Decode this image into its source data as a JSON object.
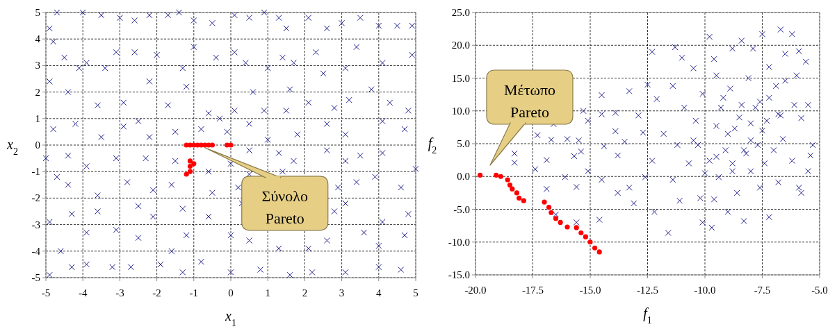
{
  "chart_data": [
    {
      "type": "scatter",
      "xlabel": "x$_{1}$",
      "ylabel": "x$_{2}$",
      "xlim": [
        -5,
        5
      ],
      "ylim": [
        -5,
        5
      ],
      "xticks": [
        -5,
        -4,
        -3,
        -2,
        -1,
        0,
        1,
        2,
        3,
        4,
        5
      ],
      "yticks": [
        -5,
        -4,
        -3,
        -2,
        -1,
        0,
        1,
        2,
        3,
        4,
        5
      ],
      "grid": true,
      "annotations": [
        {
          "text": "Σύνολο\nPareto",
          "x": -0.7,
          "y": -0.1
        }
      ],
      "series": [
        {
          "marker": "cross",
          "color": "#1c1c8c",
          "x": [
            -4.9,
            -4.7,
            -4.0,
            -3.5,
            -3.0,
            -2.6,
            -2.2,
            -1.7,
            -1.4,
            -1.0,
            -0.5,
            0.1,
            0.5,
            0.9,
            1.3,
            1.5,
            2.1,
            2.6,
            3.0,
            3.5,
            4.0,
            4.5,
            4.9,
            -4.8,
            -4.5,
            -4.1,
            -3.9,
            -3.4,
            -3.1,
            -2.6,
            -2.0,
            -1.3,
            -1.0,
            -0.4,
            0.1,
            0.4,
            1.0,
            1.4,
            1.7,
            2.3,
            2.5,
            3.1,
            3.4,
            4.1,
            4.9,
            -4.9,
            -4.4,
            -3.6,
            -2.9,
            -2.5,
            -2.2,
            -1.7,
            -1.2,
            -0.6,
            -0.3,
            0.1,
            0.6,
            0.9,
            1.5,
            1.6,
            2.1,
            2.8,
            3.2,
            3.8,
            4.3,
            4.8,
            -4.8,
            -4.2,
            -3.5,
            -2.9,
            -2.2,
            -1.5,
            -0.8,
            -0.1,
            0.5,
            1.0,
            1.8,
            2.6,
            3.1,
            4.1,
            4.7,
            -5.0,
            -4.4,
            -3.9,
            -3.1,
            -2.3,
            -1.5,
            -0.6,
            0.0,
            0.5,
            1.3,
            1.7,
            2.6,
            3.1,
            3.5,
            4.1,
            5.0,
            -4.7,
            -4.4,
            -3.6,
            -2.8,
            -2.1,
            -1.6,
            -0.5,
            0.2,
            0.5,
            1.4,
            2.9,
            3.4,
            3.9,
            4.6,
            -4.9,
            -4.3,
            -3.6,
            -2.5,
            -2.1,
            -1.3,
            -0.6,
            0.3,
            2.8,
            3.1,
            4.1,
            4.8,
            -4.6,
            -3.9,
            -3.1,
            -2.5,
            -1.6,
            -1.2,
            0.0,
            0.5,
            1.3,
            2.1,
            2.6,
            3.6,
            4.0,
            4.7,
            -4.9,
            -4.3,
            -3.9,
            -3.2,
            -2.7,
            -1.9,
            -1.3,
            -0.8,
            0.0,
            0.8,
            1.6,
            2.2,
            3.1,
            4.0,
            4.6
          ],
          "values": [
            4.4,
            5.0,
            5.0,
            4.9,
            4.8,
            4.7,
            4.9,
            4.9,
            5.0,
            4.7,
            4.6,
            4.9,
            4.8,
            5.0,
            4.8,
            4.4,
            4.8,
            4.4,
            4.6,
            4.8,
            4.5,
            4.5,
            4.5,
            3.9,
            3.3,
            2.9,
            3.1,
            2.9,
            3.5,
            3.5,
            3.4,
            2.9,
            3.7,
            3.3,
            3.5,
            3.1,
            2.9,
            3.3,
            3.1,
            3.5,
            2.7,
            2.9,
            3.7,
            3.1,
            3.4,
            2.4,
            2.0,
            1.5,
            1.6,
            0.9,
            2.4,
            1.5,
            2.2,
            1.2,
            1.0,
            1.3,
            2.0,
            1.3,
            1.3,
            2.1,
            1.6,
            1.4,
            1.7,
            2.1,
            1.6,
            1.3,
            0.6,
            0.8,
            0.3,
            0.7,
            0.3,
            0.5,
            0.6,
            0.5,
            0.8,
            0.2,
            0.4,
            0.8,
            0.4,
            0.9,
            0.6,
            -0.5,
            -0.4,
            -0.8,
            -0.5,
            -0.5,
            -0.6,
            -1.0,
            -0.7,
            -0.2,
            -0.3,
            -0.6,
            -0.2,
            -0.6,
            -0.4,
            -0.3,
            -0.9,
            -1.2,
            -1.5,
            -1.9,
            -1.4,
            -1.7,
            -1.5,
            -1.8,
            -1.6,
            -1.1,
            -1.0,
            -1.6,
            -1.4,
            -1.2,
            -1.6,
            -2.9,
            -2.6,
            -2.5,
            -2.3,
            -2.7,
            -2.4,
            -2.7,
            -2.2,
            -2.5,
            -2.2,
            -2.9,
            -2.6,
            -4.0,
            -3.3,
            -3.2,
            -3.5,
            -4.0,
            -3.4,
            -3.4,
            -3.6,
            -3.9,
            -3.9,
            -3.6,
            -3.3,
            -3.8,
            -3.4,
            -4.9,
            -4.6,
            -4.5,
            -4.6,
            -4.6,
            -4.5,
            -4.8,
            -4.4,
            -4.8,
            -4.7,
            -4.9,
            -4.8,
            -4.8,
            -4.6,
            -4.7
          ]
        },
        {
          "marker": "circle",
          "color": "#ff0000",
          "x": [
            -1.2,
            -1.1,
            -1.0,
            -0.9,
            -0.8,
            -0.7,
            -0.6,
            -0.5,
            -0.1,
            0.0,
            -1.1,
            -1.0,
            -1.1,
            -1.1,
            -1.2
          ],
          "values": [
            0.0,
            0.0,
            0.0,
            0.0,
            0.0,
            0.0,
            0.0,
            0.0,
            0.0,
            0.0,
            -0.6,
            -0.7,
            -0.8,
            -1.0,
            -1.1
          ]
        }
      ]
    },
    {
      "type": "scatter",
      "xlabel": "f$_{1}$",
      "ylabel": "f$_{2}$",
      "xlim": [
        -20,
        -5
      ],
      "ylim": [
        -15,
        25
      ],
      "xticks": [
        {
          "value": -20,
          "label": "-20.0"
        },
        {
          "value": -17.5,
          "label": "-17.5"
        },
        {
          "value": -15,
          "label": "-15.0"
        },
        {
          "value": -12.5,
          "label": "-12.5"
        },
        {
          "value": -10,
          "label": "-10.0"
        },
        {
          "value": -7.5,
          "label": "-7.5"
        },
        {
          "value": -5,
          "label": "-5.0"
        }
      ],
      "yticks": [
        {
          "value": -15,
          "label": "-15.0"
        },
        {
          "value": -10,
          "label": "-10.0"
        },
        {
          "value": -5,
          "label": "-5.0"
        },
        {
          "value": 0,
          "label": "0.0"
        },
        {
          "value": 5,
          "label": "5.0"
        },
        {
          "value": 10,
          "label": "10.0"
        },
        {
          "value": 15,
          "label": "15.0"
        },
        {
          "value": 20,
          "label": "20.0"
        },
        {
          "value": 25,
          "label": "25.0"
        }
      ],
      "grid": true,
      "annotations": [
        "Μέτωπο\nPareto"
      ],
      "series": [
        {
          "marker": "cross",
          "color": "#1c1c8c",
          "x": [
            -18.3,
            -18.3,
            -17.3,
            -17.4,
            -16.9,
            -16.9,
            -16.6,
            -16.7,
            -16.0,
            -16.1,
            -15.7,
            -15.5,
            -15.4,
            -15.6,
            -15.3,
            -15.1,
            -15.1,
            -16.5,
            -15.6,
            -14.5,
            -14.5,
            -14.4,
            -14.6,
            -14.5,
            -13.9,
            -13.9,
            -13.8,
            -13.8,
            -13.3,
            -13.5,
            -13.3,
            -13.1,
            -12.9,
            -12.7,
            -12.6,
            -12.5,
            -12.3,
            -12.3,
            -12.2,
            -12.1,
            -11.8,
            -11.6,
            -11.4,
            -11.4,
            -11.3,
            -11.2,
            -11.1,
            -11.0,
            -10.9,
            -10.7,
            -10.5,
            -10.4,
            -10.3,
            -10.2,
            -10.1,
            -10.1,
            -9.8,
            -9.8,
            -9.7,
            -9.6,
            -9.5,
            -9.5,
            -9.4,
            -9.3,
            -9.1,
            -9.0,
            -8.9,
            -8.8,
            -8.8,
            -8.7,
            -8.6,
            -8.4,
            -8.4,
            -8.3,
            -8.3,
            -8.1,
            -8.0,
            -8.0,
            -7.9,
            -7.7,
            -7.6,
            -7.6,
            -7.5,
            -7.4,
            -7.3,
            -7.2,
            -7.2,
            -7.0,
            -6.9,
            -6.8,
            -6.7,
            -6.7,
            -6.6,
            -6.5,
            -6.5,
            -6.2,
            -6.2,
            -6.1,
            -6.0,
            -5.9,
            -5.9,
            -5.8,
            -5.6,
            -5.5,
            -5.5,
            -5.4,
            -5.3,
            -5.8,
            -9.0,
            -8.5,
            -8.0,
            -7.5,
            -9.5,
            -8.8,
            -7.8,
            -9.2,
            -10.5,
            -8.2,
            -7.2,
            -6.8,
            -10.0,
            -9.6
          ],
          "values": [
            3.5,
            2.1,
            6.3,
            1.1,
            2.5,
            -1.9,
            8.0,
            5.6,
            5.7,
            -0.1,
            3.1,
            5.5,
            3.8,
            -1.6,
            10.0,
            8.5,
            0.8,
            -5.8,
            -7.0,
            12.4,
            9.5,
            4.6,
            -6.6,
            -0.5,
            9.7,
            6.9,
            3.2,
            -2.5,
            13.0,
            5.3,
            -1.7,
            -4.1,
            9.3,
            6.7,
            -0.1,
            14.0,
            19.0,
            2.4,
            -5.4,
            11.8,
            6.5,
            -8.6,
            -0.5,
            13.8,
            19.7,
            4.8,
            -3.7,
            18.1,
            10.5,
            2.0,
            16.5,
            8.5,
            4.8,
            -3.3,
            -7.0,
            12.6,
            21.3,
            2.4,
            -7.8,
            17.9,
            7.7,
            15.4,
            -0.1,
            10.5,
            4.0,
            -5.4,
            13.4,
            19.5,
            0.8,
            7.3,
            -2.5,
            10.9,
            20.7,
            4.0,
            -6.8,
            15.0,
            8.1,
            0.8,
            19.5,
            4.8,
            11.4,
            -1.7,
            21.7,
            2.0,
            8.5,
            16.7,
            -6.2,
            4.0,
            13.8,
            -0.9,
            22.4,
            9.3,
            5.7,
            18.7,
            14.6,
            21.7,
            2.4,
            10.9,
            15.4,
            19.1,
            -1.7,
            8.9,
            17.5,
            0.8,
            10.9,
            3.2,
            4.8,
            -2.5,
            6.5,
            9.0,
            5.5,
            7.0,
            3.0,
            2.0,
            10.5,
            12.0,
            5.5,
            3.5,
            12.0,
            9.5,
            0.5,
            -3.5
          ]
        },
        {
          "marker": "circle",
          "color": "#ff0000",
          "x": [
            -19.8,
            -19.1,
            -18.9,
            -18.6,
            -18.5,
            -18.4,
            -18.2,
            -18.1,
            -17.9,
            -17.0,
            -16.8,
            -16.7,
            -16.5,
            -16.3,
            -16.0,
            -15.6,
            -15.4,
            -15.2,
            -15.0,
            -14.8,
            -14.6
          ],
          "values": [
            0.2,
            0.2,
            0.0,
            -0.5,
            -1.3,
            -1.9,
            -2.5,
            -3.3,
            -3.7,
            -3.9,
            -4.7,
            -5.5,
            -6.4,
            -7.0,
            -7.7,
            -7.8,
            -8.6,
            -9.2,
            -10.0,
            -10.9,
            -11.5
          ]
        }
      ]
    }
  ]
}
